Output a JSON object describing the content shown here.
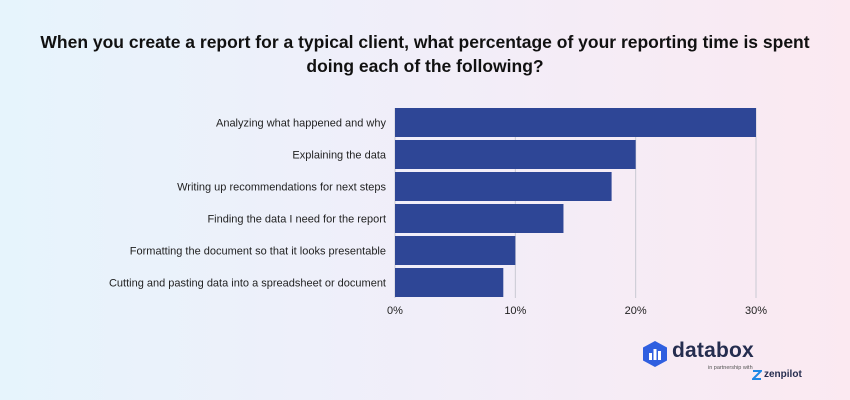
{
  "chart_data": {
    "type": "bar",
    "orientation": "horizontal",
    "title_lines": [
      "When you create a report for a typical client, what percentage of your reporting time is spent",
      "doing each of the following?"
    ],
    "categories": [
      "Analyzing what happened and why",
      "Explaining the data",
      "Writing up recommendations for next steps",
      "Finding the data I need for the report",
      "Formatting the document so that it looks presentable",
      "Cutting and pasting data into a spreadsheet or document"
    ],
    "values": [
      30,
      20,
      18,
      14,
      10,
      9
    ],
    "unit": "%",
    "xlim": [
      0,
      30
    ],
    "x_ticks": [
      "0%",
      "10%",
      "20%",
      "30%"
    ],
    "grid": true,
    "bar_color": "#2e4696"
  },
  "branding": {
    "name": "databox",
    "subtitle": "in partnership with",
    "partner": "zenpilot",
    "logo_color": "#2f5fe0",
    "partner_color": "#1e88e5"
  }
}
